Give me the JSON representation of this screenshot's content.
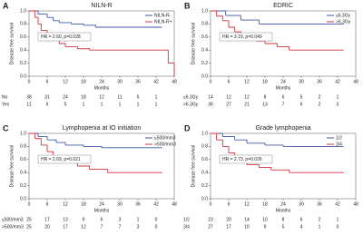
{
  "chart_data": [
    {
      "type": "step",
      "panel": "A",
      "title": "NILN-R",
      "annotation": "HR = 2.60, p=0.028",
      "x_label": "Months",
      "y_label": "Disease free survival",
      "xlim": [
        0,
        48
      ],
      "xticks": [
        0,
        6,
        12,
        18,
        24,
        30,
        36,
        42,
        48
      ],
      "ylim": [
        0,
        1
      ],
      "yticks": [
        {
          "value": 0,
          "label": "0.0"
        },
        {
          "value": 0.2,
          "label": "0.2"
        },
        {
          "value": 0.4,
          "label": "0.4"
        },
        {
          "value": 0.6,
          "label": "0.6"
        },
        {
          "value": 0.8,
          "label": "0.8"
        },
        {
          "value": 1,
          "label": "1.0"
        }
      ],
      "series": [
        {
          "name": "NILN-R-",
          "color": "#3d5aa8",
          "x": [
            0,
            3,
            6,
            8,
            10,
            14,
            18,
            22,
            44
          ],
          "values": [
            1,
            0.95,
            0.9,
            0.85,
            0.82,
            0.8,
            0.78,
            0.75,
            0.75
          ]
        },
        {
          "name": "NILN-R+",
          "color": "#d0353f",
          "x": [
            0,
            2,
            3,
            4,
            6,
            8,
            10,
            12,
            16,
            20,
            46,
            48
          ],
          "values": [
            1,
            0.9,
            0.8,
            0.7,
            0.6,
            0.55,
            0.5,
            0.45,
            0.42,
            0.4,
            0.2,
            0
          ]
        }
      ],
      "risk_table": {
        "columns": [
          0,
          6,
          12,
          18,
          24,
          30,
          36,
          42
        ],
        "rows": [
          {
            "name": "No",
            "values": [
              38,
              31,
              24,
              18,
              12,
              11,
              5,
              1
            ]
          },
          {
            "name": "Yes",
            "values": [
              11,
              6,
              5,
              1,
              1,
              1,
              1,
              1
            ]
          }
        ]
      }
    },
    {
      "type": "step",
      "panel": "B",
      "title": "EDRIC",
      "annotation": "HR = 3.19, p=0.049",
      "x_label": "Months",
      "y_label": "Disease free survival",
      "xlim": [
        0,
        48
      ],
      "xticks": [
        0,
        6,
        12,
        18,
        24,
        30,
        36,
        42,
        48
      ],
      "ylim": [
        0,
        1
      ],
      "yticks": [
        {
          "value": 0,
          "label": "0.0"
        },
        {
          "value": 0.2,
          "label": "0.2"
        },
        {
          "value": 0.4,
          "label": "0.4"
        },
        {
          "value": 0.6,
          "label": "0.6"
        },
        {
          "value": 0.8,
          "label": "0.8"
        },
        {
          "value": 1,
          "label": "1.0"
        }
      ],
      "series": [
        {
          "name": "≤6.3Gy",
          "color": "#3d5aa8",
          "x": [
            0,
            5,
            10,
            16,
            44
          ],
          "values": [
            1,
            0.93,
            0.86,
            0.8,
            0.8
          ]
        },
        {
          "name": ">6.3Gy",
          "color": "#d0353f",
          "x": [
            0,
            2,
            4,
            6,
            8,
            10,
            12,
            15,
            18,
            22,
            26,
            40,
            44
          ],
          "values": [
            1,
            0.92,
            0.85,
            0.75,
            0.68,
            0.62,
            0.58,
            0.54,
            0.5,
            0.45,
            0.4,
            0.4,
            0.4
          ]
        }
      ],
      "risk_table": {
        "columns": [
          0,
          6,
          12,
          18,
          24,
          30,
          36,
          42
        ],
        "rows": [
          {
            "name": "≤6.3Gy",
            "values": [
              14,
              12,
              12,
              8,
              6,
              5,
              2,
              1
            ]
          },
          {
            "name": ">6.3Gy",
            "values": [
              36,
              27,
              21,
              13,
              7,
              6,
              2,
              0
            ]
          }
        ]
      }
    },
    {
      "type": "step",
      "panel": "C",
      "title": "Lymphopenia at IO initiation",
      "annotation": "HR = 2.69, p=0.021",
      "x_label": "Months",
      "y_label": "Disease free survival",
      "xlim": [
        0,
        48
      ],
      "xticks": [
        0,
        6,
        12,
        18,
        24,
        30,
        36,
        42,
        48
      ],
      "ylim": [
        0,
        1
      ],
      "yticks": [
        {
          "value": 0,
          "label": "0.0"
        },
        {
          "value": 0.2,
          "label": "0.2"
        },
        {
          "value": 0.4,
          "label": "0.4"
        },
        {
          "value": 0.6,
          "label": "0.6"
        },
        {
          "value": 0.8,
          "label": "0.8"
        },
        {
          "value": 1,
          "label": "1.0"
        }
      ],
      "series": [
        {
          "name": "≤500/mm3",
          "color": "#3d5aa8",
          "x": [
            0,
            3,
            6,
            9,
            12,
            18,
            24,
            44
          ],
          "values": [
            1,
            0.95,
            0.9,
            0.86,
            0.82,
            0.8,
            0.78,
            0.78
          ]
        },
        {
          "name": ">500/mm3",
          "color": "#d0353f",
          "x": [
            0,
            2,
            4,
            6,
            8,
            10,
            13,
            16,
            20,
            26,
            44
          ],
          "values": [
            1,
            0.92,
            0.82,
            0.72,
            0.65,
            0.6,
            0.55,
            0.5,
            0.45,
            0.4,
            0.4
          ]
        }
      ],
      "risk_table": {
        "columns": [
          0,
          6,
          12,
          18,
          24,
          30,
          36,
          42
        ],
        "rows": [
          {
            "name": "≤500/mm3",
            "values": [
              25,
              17,
              13,
              9,
              6,
              3,
              1,
              0
            ]
          },
          {
            "name": ">500/mm3",
            "values": [
              25,
              20,
              17,
              12,
              7,
              7,
              3,
              0
            ]
          }
        ]
      }
    },
    {
      "type": "step",
      "panel": "D",
      "title": "Grade lymphopenia",
      "annotation": "HR = 2.73, p=0.026",
      "x_label": "Months",
      "y_label": "Disease free survival",
      "xlim": [
        0,
        48
      ],
      "xticks": [
        0,
        6,
        12,
        18,
        24,
        30,
        36,
        42,
        48
      ],
      "ylim": [
        0,
        1
      ],
      "yticks": [
        {
          "value": 0,
          "label": "0.0"
        },
        {
          "value": 0.2,
          "label": "0.2"
        },
        {
          "value": 0.4,
          "label": "0.4"
        },
        {
          "value": 0.6,
          "label": "0.6"
        },
        {
          "value": 0.8,
          "label": "0.8"
        },
        {
          "value": 1,
          "label": "1.0"
        }
      ],
      "series": [
        {
          "name": "1/2",
          "color": "#3d5aa8",
          "x": [
            0,
            4,
            8,
            12,
            18,
            24,
            44
          ],
          "values": [
            1,
            0.95,
            0.9,
            0.85,
            0.82,
            0.8,
            0.8
          ]
        },
        {
          "name": "3/4",
          "color": "#d0353f",
          "x": [
            0,
            2,
            4,
            6,
            8,
            10,
            12,
            16,
            20,
            26,
            44
          ],
          "values": [
            1,
            0.9,
            0.8,
            0.7,
            0.62,
            0.57,
            0.52,
            0.48,
            0.44,
            0.4,
            0.4
          ]
        }
      ],
      "risk_table": {
        "columns": [
          0,
          6,
          12,
          18,
          24,
          30,
          36,
          42
        ],
        "rows": [
          {
            "name": "1/2",
            "values": [
              23,
              20,
              14,
              10,
              8,
              6,
              2,
              1
            ]
          },
          {
            "name": "3/4",
            "values": [
              27,
              17,
              10,
              9,
              5,
              4,
              1,
              0
            ]
          }
        ]
      }
    }
  ]
}
